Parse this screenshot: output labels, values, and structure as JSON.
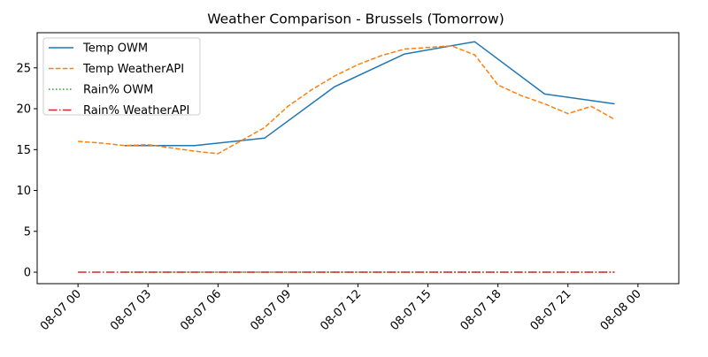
{
  "chart_data": {
    "type": "line",
    "title": "Weather Comparison - Brussels (Tomorrow)",
    "xlabel": "",
    "ylabel": "",
    "x_axis": {
      "type": "datetime",
      "range": [
        "2025-08-06T22:15",
        "2025-08-08T01:45"
      ],
      "ticks": [
        "2025-08-07T00:00",
        "2025-08-07T03:00",
        "2025-08-07T06:00",
        "2025-08-07T09:00",
        "2025-08-07T12:00",
        "2025-08-07T15:00",
        "2025-08-07T18:00",
        "2025-08-07T21:00",
        "2025-08-08T00:00"
      ],
      "tick_labels": [
        "08-07 00",
        "08-07 03",
        "08-07 06",
        "08-07 09",
        "08-07 12",
        "08-07 15",
        "08-07 18",
        "08-07 21",
        "08-08 00"
      ]
    },
    "y_axis": {
      "range": [
        -1.4,
        29.3
      ],
      "ticks": [
        0,
        5,
        10,
        15,
        20,
        25
      ],
      "tick_labels": [
        "0",
        "5",
        "10",
        "15",
        "20",
        "25"
      ]
    },
    "grid": false,
    "legend_position": "top-left",
    "series": [
      {
        "name": "Temp OWM",
        "color": "#1f77b4",
        "line_style": "solid",
        "x": [
          "2025-08-07T02:00",
          "2025-08-07T05:00",
          "2025-08-07T08:00",
          "2025-08-07T11:00",
          "2025-08-07T14:00",
          "2025-08-07T17:00",
          "2025-08-07T20:00",
          "2025-08-07T23:00"
        ],
        "y": [
          15.5,
          15.5,
          16.4,
          22.7,
          26.7,
          28.2,
          21.8,
          20.6
        ]
      },
      {
        "name": "Temp WeatherAPI",
        "color": "#ff7f0e",
        "line_style": "dashed",
        "x": [
          "2025-08-07T00:00",
          "2025-08-07T01:00",
          "2025-08-07T02:00",
          "2025-08-07T03:00",
          "2025-08-07T04:00",
          "2025-08-07T05:00",
          "2025-08-07T06:00",
          "2025-08-07T07:00",
          "2025-08-07T08:00",
          "2025-08-07T09:00",
          "2025-08-07T10:00",
          "2025-08-07T11:00",
          "2025-08-07T12:00",
          "2025-08-07T13:00",
          "2025-08-07T14:00",
          "2025-08-07T15:00",
          "2025-08-07T16:00",
          "2025-08-07T17:00",
          "2025-08-07T18:00",
          "2025-08-07T19:00",
          "2025-08-07T20:00",
          "2025-08-07T21:00",
          "2025-08-07T22:00",
          "2025-08-07T23:00"
        ],
        "y": [
          16.0,
          15.8,
          15.5,
          15.6,
          15.2,
          14.8,
          14.5,
          16.1,
          17.7,
          20.3,
          22.3,
          24.0,
          25.4,
          26.5,
          27.3,
          27.5,
          27.7,
          26.6,
          22.9,
          21.6,
          20.6,
          19.4,
          20.3,
          18.7
        ]
      },
      {
        "name": "Rain% OWM",
        "color": "#2ca02c",
        "line_style": "dotted",
        "x": [
          "2025-08-07T02:00",
          "2025-08-07T05:00",
          "2025-08-07T08:00",
          "2025-08-07T11:00",
          "2025-08-07T14:00",
          "2025-08-07T17:00",
          "2025-08-07T20:00",
          "2025-08-07T23:00"
        ],
        "y": [
          0,
          0,
          0,
          0,
          0,
          0,
          0,
          0
        ]
      },
      {
        "name": "Rain% WeatherAPI",
        "color": "#d62728",
        "line_style": "dashdot",
        "x": [
          "2025-08-07T00:00",
          "2025-08-07T01:00",
          "2025-08-07T02:00",
          "2025-08-07T03:00",
          "2025-08-07T04:00",
          "2025-08-07T05:00",
          "2025-08-07T06:00",
          "2025-08-07T07:00",
          "2025-08-07T08:00",
          "2025-08-07T09:00",
          "2025-08-07T10:00",
          "2025-08-07T11:00",
          "2025-08-07T12:00",
          "2025-08-07T13:00",
          "2025-08-07T14:00",
          "2025-08-07T15:00",
          "2025-08-07T16:00",
          "2025-08-07T17:00",
          "2025-08-07T18:00",
          "2025-08-07T19:00",
          "2025-08-07T20:00",
          "2025-08-07T21:00",
          "2025-08-07T22:00",
          "2025-08-07T23:00"
        ],
        "y": [
          0,
          0,
          0,
          0,
          0,
          0,
          0,
          0,
          0,
          0,
          0,
          0,
          0,
          0,
          0,
          0,
          0,
          0,
          0,
          0,
          0,
          0,
          0,
          0
        ]
      }
    ]
  }
}
